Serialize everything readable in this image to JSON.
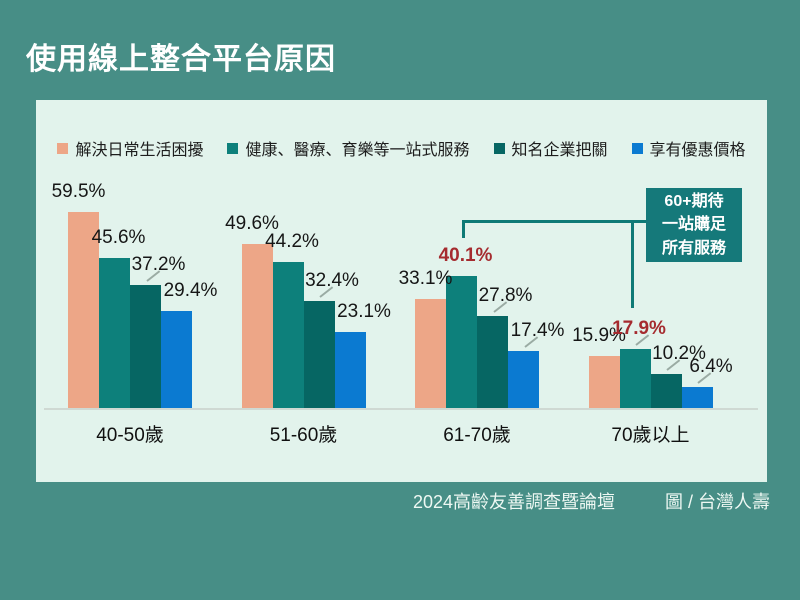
{
  "title": "使用線上整合平台原因",
  "footer": {
    "source": "2024高齡友善調查暨論壇",
    "credit": "圖 / 台灣人壽"
  },
  "annotation": {
    "lines": [
      "60+期待",
      "一站購足",
      "所有服務"
    ]
  },
  "colors": {
    "page_background": "#478e86",
    "panel_background": "#e2f3ec",
    "highlight_text": "#a52b2f",
    "bracket": "#0e7a76",
    "annotation_box": "#15797a"
  },
  "chart_data": {
    "type": "bar",
    "title": "使用線上整合平台原因",
    "xlabel": "",
    "ylabel": "",
    "ylim": [
      0,
      65
    ],
    "grid": false,
    "legend_position": "top",
    "categories": [
      "40-50歲",
      "51-60歲",
      "61-70歲",
      "70歲以上"
    ],
    "series": [
      {
        "name": "解決日常生活困擾",
        "color": "#eda687",
        "values": [
          59.5,
          49.6,
          33.1,
          15.9
        ],
        "labels": [
          "59.5%",
          "49.6%",
          "33.1%",
          "15.9%"
        ]
      },
      {
        "name": "健康、醫療、育樂等一站式服務",
        "color": "#0d807b",
        "values": [
          45.6,
          44.2,
          40.1,
          17.9
        ],
        "labels": [
          "45.6%",
          "44.2%",
          "40.1%",
          "17.9%"
        ]
      },
      {
        "name": "知名企業把關",
        "color": "#066663",
        "values": [
          37.2,
          32.4,
          27.8,
          10.2
        ],
        "labels": [
          "37.2%",
          "32.4%",
          "27.8%",
          "10.2%"
        ]
      },
      {
        "name": "享有優惠價格",
        "color": "#0b7ad1",
        "values": [
          29.4,
          23.1,
          17.4,
          6.4
        ],
        "labels": [
          "29.4%",
          "23.1%",
          "17.4%",
          "6.4%"
        ]
      }
    ],
    "highlights": [
      [
        2,
        1
      ],
      [
        3,
        1
      ]
    ],
    "leader_lines": [
      [
        0,
        2
      ],
      [
        1,
        2
      ],
      [
        2,
        2
      ],
      [
        2,
        3
      ],
      [
        3,
        1
      ],
      [
        3,
        2
      ],
      [
        3,
        3
      ]
    ],
    "annotation_text": "60+期待一站購足所有服務"
  }
}
